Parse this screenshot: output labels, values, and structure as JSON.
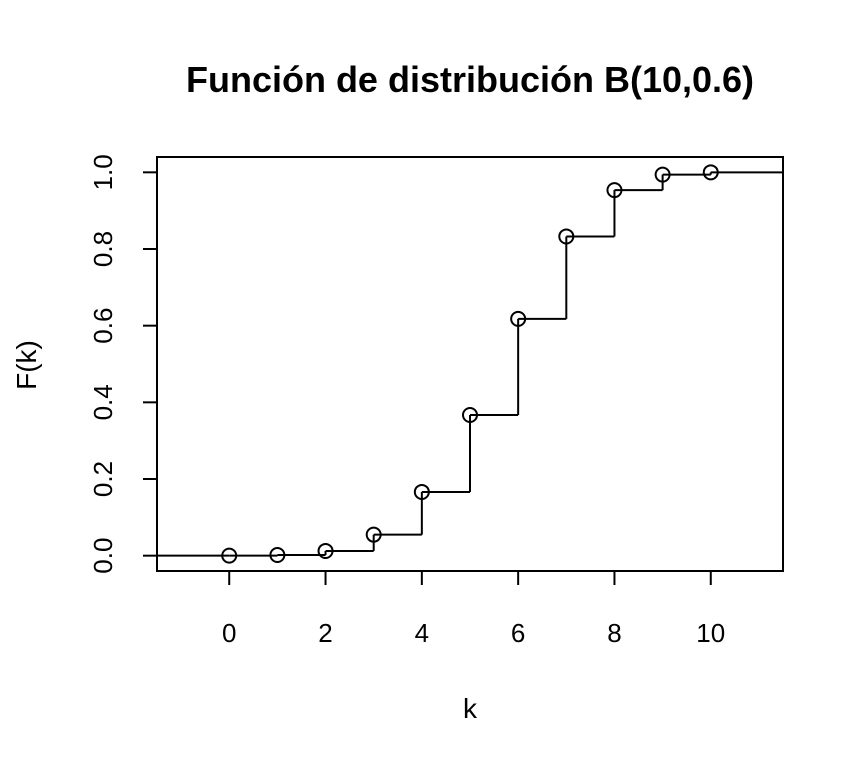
{
  "chart_data": {
    "type": "step",
    "title": "Función de distribución B(10,0.6)",
    "xlabel": "k",
    "ylabel": "F(k)",
    "xlim": [
      -1.5,
      11.5
    ],
    "ylim": [
      -0.04,
      1.04
    ],
    "x_ticks": [
      0,
      2,
      4,
      6,
      8,
      10
    ],
    "x_tick_labels": [
      "0",
      "2",
      "4",
      "6",
      "8",
      "10"
    ],
    "y_ticks": [
      0.0,
      0.2,
      0.4,
      0.6,
      0.8,
      1.0
    ],
    "y_tick_labels": [
      "0.0",
      "0.2",
      "0.4",
      "0.6",
      "0.8",
      "1.0"
    ],
    "grid": false,
    "series": [
      {
        "x": [
          0,
          1,
          2,
          3,
          4,
          5,
          6,
          7,
          8,
          9,
          10
        ],
        "values": [
          0.0001,
          0.0017,
          0.0123,
          0.0548,
          0.1662,
          0.3669,
          0.6177,
          0.8327,
          0.9536,
          0.994,
          1.0
        ]
      }
    ],
    "line_color": "#000000",
    "marker": "open-circle"
  }
}
